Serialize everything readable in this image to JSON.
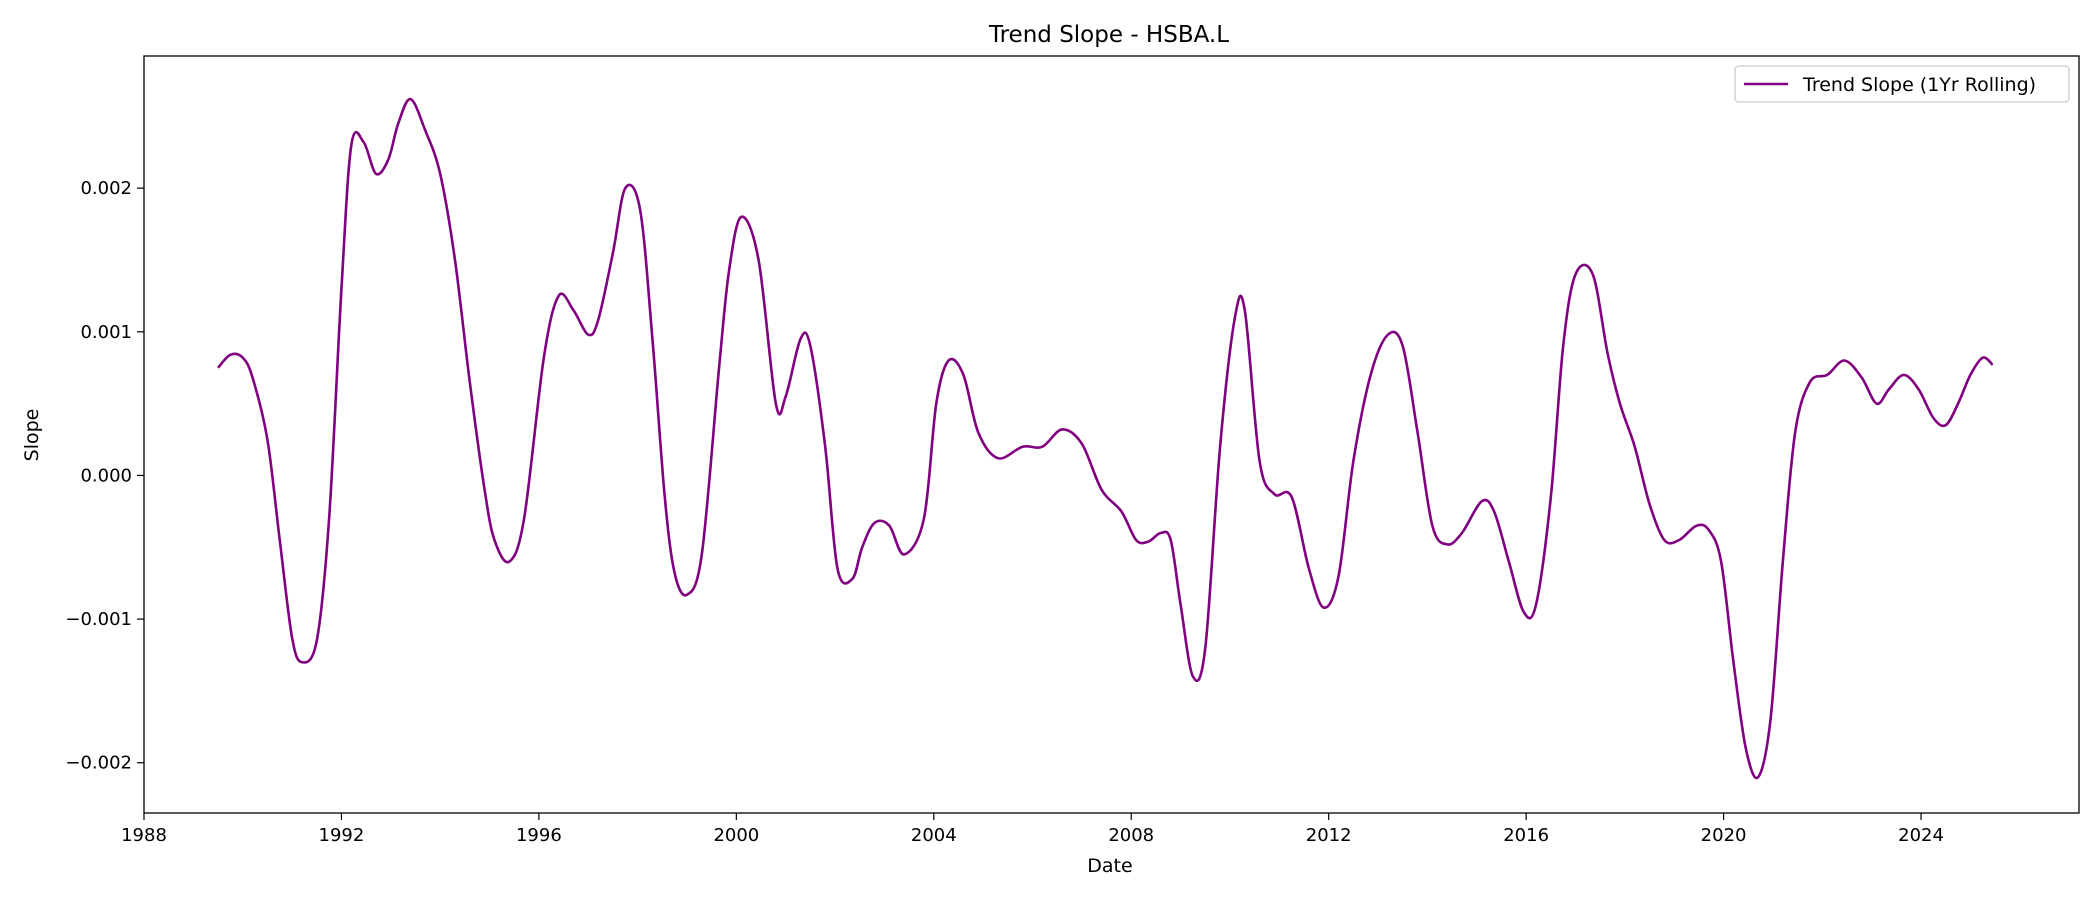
{
  "chart_data": {
    "type": "line",
    "title": "Trend Slope - HSBA.L",
    "xlabel": "Date",
    "ylabel": "Slope",
    "xlim": [
      1988.0,
      2027.2
    ],
    "ylim": [
      -0.00235,
      0.00292
    ],
    "xticks": [
      {
        "value": 1988,
        "label": "1988"
      },
      {
        "value": 1992,
        "label": "1992"
      },
      {
        "value": 1996,
        "label": "1996"
      },
      {
        "value": 2000,
        "label": "2000"
      },
      {
        "value": 2004,
        "label": "2004"
      },
      {
        "value": 2008,
        "label": "2008"
      },
      {
        "value": 2012,
        "label": "2012"
      },
      {
        "value": 2016,
        "label": "2016"
      },
      {
        "value": 2020,
        "label": "2020"
      },
      {
        "value": 2024,
        "label": "2024"
      }
    ],
    "yticks": [
      {
        "value": -0.002,
        "label": "−0.002"
      },
      {
        "value": -0.001,
        "label": "−0.001"
      },
      {
        "value": 0.0,
        "label": "0.000"
      },
      {
        "value": 0.001,
        "label": "0.001"
      },
      {
        "value": 0.002,
        "label": "0.002"
      }
    ],
    "grid": false,
    "legend_position": "top-right",
    "series": [
      {
        "name": "Trend Slope (1Yr Rolling)",
        "color": "#800080",
        "x": [
          1989.5,
          1989.75,
          1990.0,
          1990.2,
          1990.5,
          1990.75,
          1991.0,
          1991.2,
          1991.5,
          1991.75,
          1992.0,
          1992.2,
          1992.45,
          1992.7,
          1992.95,
          1993.15,
          1993.4,
          1993.7,
          1994.0,
          1994.3,
          1994.6,
          1994.9,
          1995.1,
          1995.4,
          1995.7,
          1996.1,
          1996.4,
          1996.7,
          1997.0,
          1997.2,
          1997.5,
          1997.75,
          1998.05,
          1998.3,
          1998.55,
          1998.75,
          1999.0,
          1999.3,
          1999.65,
          1999.85,
          2000.1,
          2000.45,
          2000.8,
          2001.0,
          2001.3,
          2001.5,
          2001.8,
          2002.05,
          2002.35,
          2002.55,
          2002.8,
          2003.1,
          2003.4,
          2003.8,
          2004.05,
          2004.3,
          2004.6,
          2004.9,
          2005.3,
          2005.8,
          2006.2,
          2006.6,
          2007.0,
          2007.4,
          2007.8,
          2008.1,
          2008.35,
          2008.6,
          2008.8,
          2009.0,
          2009.25,
          2009.5,
          2009.8,
          2010.1,
          2010.3,
          2010.6,
          2010.9,
          2011.25,
          2011.6,
          2011.9,
          2012.2,
          2012.5,
          2012.85,
          2013.2,
          2013.5,
          2013.8,
          2014.1,
          2014.4,
          2014.7,
          2015.1,
          2015.35,
          2015.65,
          2015.95,
          2016.2,
          2016.5,
          2016.75,
          2017.0,
          2017.35,
          2017.65,
          2017.9,
          2018.2,
          2018.5,
          2018.8,
          2019.1,
          2019.45,
          2019.7,
          2019.95,
          2020.2,
          2020.45,
          2020.7,
          2020.95,
          2021.2,
          2021.45,
          2021.75,
          2022.1,
          2022.45,
          2022.8,
          2023.1,
          2023.35,
          2023.65,
          2023.95,
          2024.25,
          2024.5,
          2024.75,
          2025.0,
          2025.25,
          2025.45
        ],
        "values": [
          0.00075,
          0.00084,
          0.00082,
          0.00068,
          0.00025,
          -0.00045,
          -0.00113,
          -0.0013,
          -0.00115,
          -0.0003,
          0.0013,
          0.0023,
          0.00232,
          0.0021,
          0.0022,
          0.00245,
          0.00262,
          0.0024,
          0.0021,
          0.0015,
          0.00065,
          -0.0001,
          -0.00045,
          -0.0006,
          -0.0003,
          0.00082,
          0.00125,
          0.00115,
          0.00098,
          0.00108,
          0.00155,
          0.002,
          0.00185,
          0.00095,
          -0.00015,
          -0.00068,
          -0.00083,
          -0.00055,
          0.00075,
          0.00142,
          0.0018,
          0.0015,
          0.0005,
          0.00055,
          0.00095,
          0.0009,
          0.0002,
          -0.00065,
          -0.00072,
          -0.0005,
          -0.00033,
          -0.00035,
          -0.00055,
          -0.0003,
          0.0005,
          0.0008,
          0.0007,
          0.0003,
          0.00012,
          0.0002,
          0.0002,
          0.00032,
          0.00022,
          -0.0001,
          -0.00025,
          -0.00045,
          -0.00046,
          -0.0004,
          -0.00045,
          -0.0009,
          -0.0014,
          -0.0012,
          0.0002,
          0.0011,
          0.00115,
          0.0001,
          -0.00013,
          -0.00015,
          -0.00065,
          -0.00092,
          -0.0007,
          0.0001,
          0.0007,
          0.00098,
          0.0009,
          0.0003,
          -0.00035,
          -0.00048,
          -0.0004,
          -0.00018,
          -0.00025,
          -0.0006,
          -0.00095,
          -0.0009,
          -0.00015,
          0.0009,
          0.0014,
          0.0014,
          0.00085,
          0.0005,
          0.0002,
          -0.0002,
          -0.00045,
          -0.00045,
          -0.00035,
          -0.00038,
          -0.0006,
          -0.0013,
          -0.0019,
          -0.0021,
          -0.0017,
          -0.0006,
          0.0003,
          0.00065,
          0.0007,
          0.0008,
          0.00068,
          0.0005,
          0.0006,
          0.0007,
          0.0006,
          0.0004,
          0.00035,
          0.0005,
          0.0007,
          0.00082,
          0.00077
        ]
      }
    ]
  }
}
